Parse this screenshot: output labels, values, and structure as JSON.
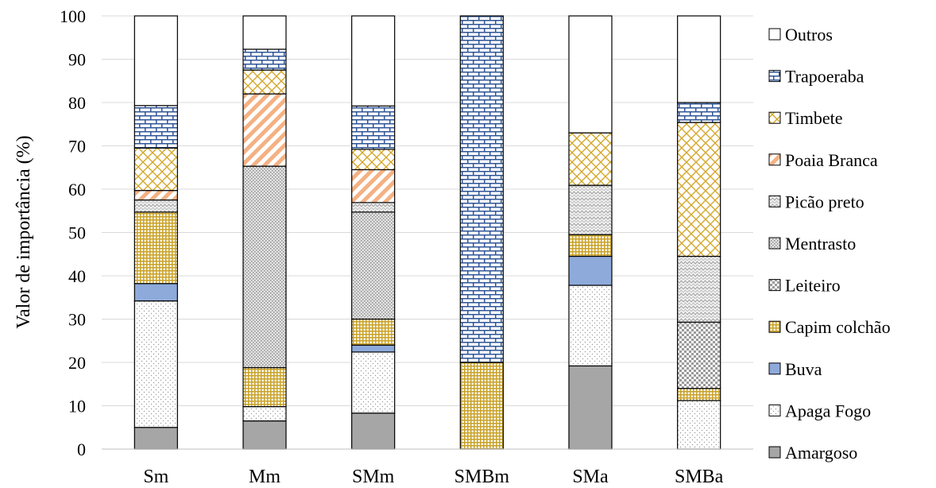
{
  "chart_data": {
    "type": "bar",
    "stacked": true,
    "title": "",
    "xlabel": "",
    "ylabel": "Valor de importância (%)",
    "ylim": [
      0,
      100
    ],
    "yticks": [
      "0",
      "10",
      "20",
      "30",
      "40",
      "50",
      "60",
      "70",
      "80",
      "90",
      "100"
    ],
    "grid": true,
    "legend_position": "right",
    "categories": [
      "Sm",
      "Mm",
      "SMm",
      "SMBm",
      "SMa",
      "SMBa"
    ],
    "series": [
      {
        "name": "Amargoso",
        "pattern": "solid-gray",
        "color": "#a6a6a6",
        "values": [
          5.0,
          6.5,
          8.3,
          0.0,
          19.2,
          0.0
        ]
      },
      {
        "name": "Apaga Fogo",
        "pattern": "fine-dots",
        "color": "#d0d0d0",
        "values": [
          29.2,
          3.3,
          14.1,
          0.0,
          18.6,
          11.2
        ]
      },
      {
        "name": "Buva",
        "pattern": "solid-blue",
        "color": "#8eaadb",
        "values": [
          4.0,
          0.0,
          1.6,
          0.0,
          6.7,
          0.0
        ]
      },
      {
        "name": "Capim colchão",
        "pattern": "gold-grid",
        "color": "#c9a227",
        "values": [
          16.5,
          9.0,
          6.0,
          20.0,
          5.0,
          2.8
        ]
      },
      {
        "name": "Leiteiro",
        "pattern": "gray-checker",
        "color": "#b3b3b3",
        "values": [
          0.0,
          0.0,
          0.0,
          0.0,
          0.0,
          15.3
        ]
      },
      {
        "name": "Mentrasto",
        "pattern": "gray-speckle",
        "color": "#c8c8c8",
        "values": [
          0.0,
          46.5,
          24.7,
          0.0,
          0.0,
          0.0
        ]
      },
      {
        "name": "Picão preto",
        "pattern": "gray-zigzag",
        "color": "#d9d9d9",
        "values": [
          2.8,
          0.0,
          2.2,
          0.0,
          11.4,
          15.2
        ]
      },
      {
        "name": "Poaia Branca",
        "pattern": "orange-diagonal",
        "color": "#f4b183",
        "values": [
          2.2,
          16.7,
          7.6,
          0.0,
          0.0,
          0.0
        ]
      },
      {
        "name": "Timbete",
        "pattern": "gold-crosshatch",
        "color": "#d4a72c",
        "values": [
          9.8,
          5.5,
          4.7,
          0.0,
          12.1,
          30.9
        ]
      },
      {
        "name": "Trapoeraba",
        "pattern": "blue-brick",
        "color": "#2f5597",
        "values": [
          9.8,
          4.8,
          10.0,
          80.0,
          0.0,
          4.6
        ]
      },
      {
        "name": "Outros",
        "pattern": "white",
        "color": "#ffffff",
        "values": [
          20.7,
          7.7,
          20.8,
          0.0,
          27.0,
          20.0
        ]
      }
    ],
    "legend_order": [
      "Outros",
      "Trapoeraba",
      "Timbete",
      "Poaia Branca",
      "Picão preto",
      "Mentrasto",
      "Leiteiro",
      "Capim colchão",
      "Buva",
      "Apaga Fogo",
      "Amargoso"
    ]
  }
}
